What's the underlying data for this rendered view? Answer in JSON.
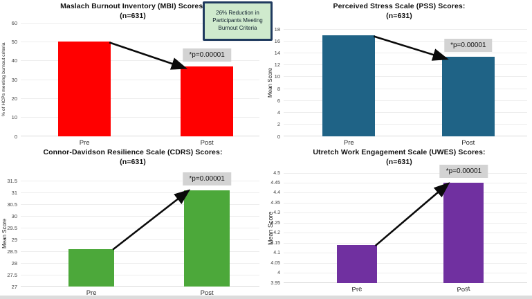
{
  "page": {
    "background": "#ffffff",
    "footer_strip_color": "#dcdcdc"
  },
  "callout": {
    "text": "26% Reduction in Participants Meeting Burnout Criteria",
    "fill": "#cfeacd",
    "border": "#1f3a5f"
  },
  "chart_data": [
    {
      "type": "bar",
      "title": "Maslach Burnout Inventory (MBI) Scores:",
      "subtitle": "(n=631)",
      "ylabel": "% of HCPs meeting burnout criteria",
      "categories": [
        "Pre",
        "Post"
      ],
      "values": [
        50,
        37
      ],
      "ylim": [
        0,
        60
      ],
      "tick_labels": [
        "0",
        "10",
        "20",
        "30",
        "40",
        "50",
        "60"
      ],
      "bar_color": "#ff0000",
      "p_label": "*p=0.00001",
      "p_box_color": "#d3d3d3",
      "trend": "down",
      "grid": true,
      "legend": "none"
    },
    {
      "type": "bar",
      "title": "Perceived Stress Scale (PSS) Scores:",
      "subtitle": "(n=631)",
      "ylabel": "Mean Score",
      "categories": [
        "Pre",
        "Post"
      ],
      "values": [
        16.9,
        13.3
      ],
      "ylim": [
        0,
        18
      ],
      "tick_labels": [
        "0",
        "2",
        "4",
        "6",
        "8",
        "10",
        "12",
        "14",
        "16",
        "18"
      ],
      "bar_color": "#1f6386",
      "p_label": "*p=0.00001",
      "p_box_color": "#d3d3d3",
      "trend": "down",
      "grid": true,
      "legend": "none"
    },
    {
      "type": "bar",
      "title": "Connor-Davidson Resilience Scale (CDRS) Scores:",
      "subtitle": "(n=631)",
      "ylabel": "Mean Score",
      "categories": [
        "Pre",
        "Post"
      ],
      "values": [
        28.6,
        31.1
      ],
      "ylim": [
        27,
        31.5
      ],
      "tick_labels": [
        "27",
        "27.5",
        "28",
        "28.5",
        "29",
        "29.5",
        "30",
        "30.5",
        "31",
        "31.5"
      ],
      "bar_color": "#4ca83a",
      "p_label": "*p=0.00001",
      "p_box_color": "#d3d3d3",
      "trend": "up",
      "grid": true,
      "legend": "none"
    },
    {
      "type": "bar",
      "title": "Utretch Work Engagement Scale (UWES) Scores:",
      "subtitle": "(n=631)",
      "ylabel": "Mean Score",
      "categories": [
        "Pre",
        "Post"
      ],
      "values": [
        4.14,
        4.45
      ],
      "ylim": [
        3.95,
        4.5
      ],
      "tick_labels": [
        "3.95",
        "4",
        "4.05",
        "4.1",
        "4.15",
        "4.2",
        "4.25",
        "4.3",
        "4.35",
        "4.4",
        "4.45",
        "4.5"
      ],
      "bar_color": "#7030a0",
      "p_label": "*p=0.00001",
      "p_box_color": "#d3d3d3",
      "trend": "up",
      "grid": true,
      "legend": "none"
    }
  ]
}
